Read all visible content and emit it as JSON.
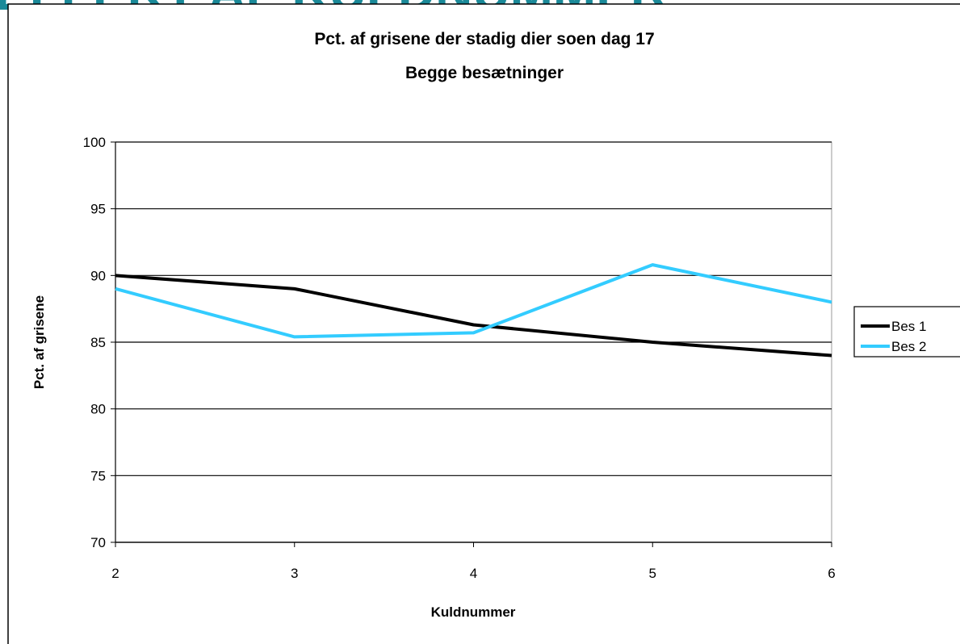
{
  "heading": "EFFEKT AF KULDNUMMER",
  "chart_data": {
    "type": "line",
    "title": [
      "Pct. af grisene der stadig dier soen dag 17",
      "Begge besætninger"
    ],
    "x_label": "Kuldnummer",
    "y_label": "Pct. af grisene",
    "x": [
      2,
      3,
      4,
      5,
      6
    ],
    "series": [
      {
        "name": "Bes 1",
        "color": "#000000",
        "values": [
          90,
          89,
          86.3,
          85,
          84
        ]
      },
      {
        "name": "Bes 2",
        "color": "#33ccff",
        "values": [
          89,
          85.4,
          85.7,
          90.8,
          88
        ]
      }
    ],
    "xlim": [
      2,
      6
    ],
    "xticks": [
      2,
      3,
      4,
      5,
      6
    ],
    "ylim": [
      70,
      100
    ],
    "yticks": [
      70,
      75,
      80,
      85,
      90,
      95,
      100
    ],
    "grid": true,
    "legend": "right"
  }
}
